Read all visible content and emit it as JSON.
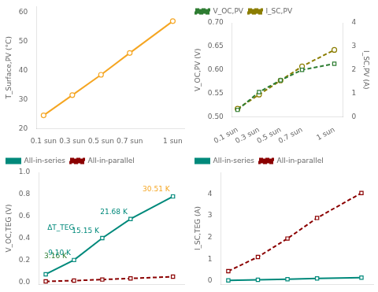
{
  "chart_data": [
    {
      "type": "line",
      "ylabel": "T_Surface,PV (°C)",
      "x": [
        0.1,
        0.3,
        0.5,
        0.7,
        1.0
      ],
      "xlim": [
        0.05,
        1.08
      ],
      "xticks": [
        {
          "value": 0.1,
          "label": "0.1 sun"
        },
        {
          "value": 0.3,
          "label": "0.3 sun"
        },
        {
          "value": 0.5,
          "label": "0.5 sun"
        },
        {
          "value": 0.7,
          "label": "0.7 sun"
        },
        {
          "value": 1.0,
          "label": "1 sun"
        }
      ],
      "ylim": [
        20,
        62
      ],
      "yticks": [
        20,
        30,
        40,
        50,
        60
      ],
      "grid": false,
      "series": [
        {
          "color": "#F5A623",
          "marker": "circle",
          "line_style": "solid",
          "values": [
            24.5,
            31.5,
            38.5,
            46.0,
            57.0
          ]
        }
      ]
    },
    {
      "type": "line",
      "ylabel": "V_OC,PV (V)",
      "y2label": "I_SC,PV (A)",
      "x": [
        0.1,
        0.3,
        0.5,
        0.7,
        1.0
      ],
      "xlim": [
        0.05,
        1.08
      ],
      "xticks": [
        {
          "value": 0.1,
          "label": "0.1 sun"
        },
        {
          "value": 0.3,
          "label": "0.3 sun"
        },
        {
          "value": 0.5,
          "label": "0.5 sun"
        },
        {
          "value": 0.7,
          "label": "0.7 sun"
        },
        {
          "value": 1.0,
          "label": "1 sun"
        }
      ],
      "ylim": [
        0.5,
        0.7
      ],
      "yticks": [
        {
          "value": 0.5,
          "label": "0.50"
        },
        {
          "value": 0.55,
          "label": "0.55"
        },
        {
          "value": 0.6,
          "label": "0.60"
        },
        {
          "value": 0.65,
          "label": "0.65"
        },
        {
          "value": 0.7,
          "label": "0.70"
        }
      ],
      "y2lim": [
        0,
        4
      ],
      "y2ticks": [
        0,
        1,
        2,
        3,
        4
      ],
      "grid": false,
      "legend": "upper left",
      "series": [
        {
          "name": "V_OC,PV",
          "color": "#2E7D32",
          "marker": "square",
          "line_style": "dashed",
          "values": [
            0.515,
            0.553,
            0.578,
            0.6,
            0.613
          ]
        },
        {
          "name": "I_SC,PV",
          "axis": "y2",
          "color": "#8B7D00",
          "marker": "circle",
          "line_style": "dashed",
          "values": [
            0.35,
            0.95,
            1.55,
            2.15,
            2.85
          ]
        }
      ]
    },
    {
      "type": "line",
      "ylabel": "V_OC,TEG (V)",
      "x": [
        0.1,
        0.3,
        0.5,
        0.7,
        1.0
      ],
      "xlim": [
        0.05,
        1.08
      ],
      "ylim": [
        -0.02,
        1.0
      ],
      "yticks": [
        {
          "value": 0.0,
          "label": "0.0"
        },
        0.2,
        0.4,
        0.6,
        0.8,
        {
          "value": 1.0,
          "label": "1.0"
        }
      ],
      "tick_labels": "y",
      "grid": false,
      "legend": "upper left",
      "series": [
        {
          "name": "All-in-series",
          "color": "#00897B",
          "marker": "square",
          "line_style": "solid",
          "values": [
            0.07,
            0.2,
            0.4,
            0.575,
            0.78
          ]
        },
        {
          "name": "All-in-parallel",
          "color": "#8B0000",
          "marker": "square",
          "line_style": "dashed",
          "values": [
            0.005,
            0.012,
            0.022,
            0.032,
            0.048
          ]
        }
      ],
      "annotations": [
        {
          "text": "3.16 K",
          "x": 0.1,
          "y": 0.07,
          "color": "#2E7D32"
        },
        {
          "text": "9.10 K",
          "x": 0.3,
          "y": 0.2,
          "color": "#00897B"
        },
        {
          "text": "15.15 K",
          "x": 0.5,
          "y": 0.4,
          "color": "#00897B"
        },
        {
          "text": "21.68 K",
          "x": 0.7,
          "y": 0.575,
          "color": "#00897B"
        },
        {
          "text": "30.51 K",
          "x": 1.0,
          "y": 0.78,
          "color": "#F5A623"
        },
        {
          "text": "ΔT_TEG",
          "color": "#00897B"
        }
      ]
    },
    {
      "type": "line",
      "ylabel": "I_SC,TEG (A)",
      "x": [
        0.1,
        0.3,
        0.5,
        0.7,
        1.0
      ],
      "xlim": [
        0.05,
        1.08
      ],
      "ylim": [
        -0.15,
        5.0
      ],
      "yticks": [
        0,
        1,
        2,
        3,
        4
      ],
      "tick_labels": "y",
      "grid": false,
      "legend": "upper left",
      "series": [
        {
          "name": "All-in-series",
          "color": "#00897B",
          "marker": "square",
          "line_style": "solid",
          "values": [
            0.02,
            0.05,
            0.08,
            0.11,
            0.15
          ]
        },
        {
          "name": "All-in-parallel",
          "color": "#8B0000",
          "marker": "square",
          "line_style": "dashed",
          "values": [
            0.45,
            1.1,
            1.95,
            2.9,
            4.05
          ]
        }
      ]
    }
  ]
}
